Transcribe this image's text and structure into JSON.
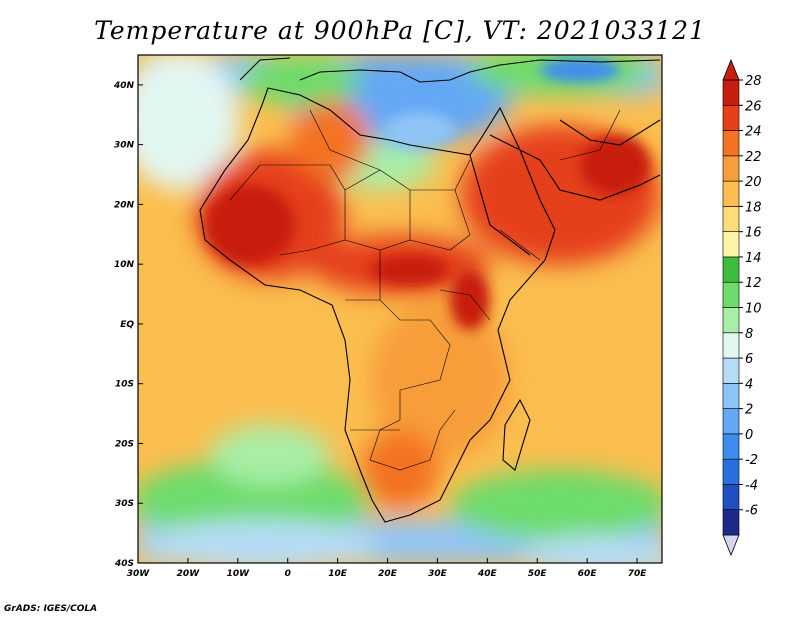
{
  "title": "Temperature at 900hPa [C], VT: 2021033121",
  "credit": "GrADS: IGES/COLA",
  "map": {
    "lon_range": [
      -30,
      75
    ],
    "lat_range": [
      -40,
      45
    ],
    "lon_ticks": [
      {
        "value": -30,
        "label": "30W"
      },
      {
        "value": -20,
        "label": "20W"
      },
      {
        "value": -10,
        "label": "10W"
      },
      {
        "value": 0,
        "label": "0"
      },
      {
        "value": 10,
        "label": "10E"
      },
      {
        "value": 20,
        "label": "20E"
      },
      {
        "value": 30,
        "label": "30E"
      },
      {
        "value": 40,
        "label": "40E"
      },
      {
        "value": 50,
        "label": "50E"
      },
      {
        "value": 60,
        "label": "60E"
      },
      {
        "value": 70,
        "label": "70E"
      }
    ],
    "lat_ticks": [
      {
        "value": 40,
        "label": "40N"
      },
      {
        "value": 30,
        "label": "30N"
      },
      {
        "value": 20,
        "label": "20N"
      },
      {
        "value": 10,
        "label": "10N"
      },
      {
        "value": 0,
        "label": "EQ"
      },
      {
        "value": -10,
        "label": "10S"
      },
      {
        "value": -20,
        "label": "20S"
      },
      {
        "value": -30,
        "label": "30S"
      },
      {
        "value": -40,
        "label": "40S"
      }
    ]
  },
  "colorbar": {
    "labels": [
      "-6",
      "-4",
      "-2",
      "0",
      "2",
      "4",
      "6",
      "8",
      "10",
      "12",
      "14",
      "16",
      "18",
      "20",
      "22",
      "24",
      "26",
      "28"
    ],
    "colors": [
      "#1e2a8a",
      "#1f4fc2",
      "#2a6fe0",
      "#3f8cf0",
      "#63a8f5",
      "#8fc4f7",
      "#b5dcf7",
      "#e2f6f2",
      "#a8eea6",
      "#6ddc6a",
      "#3cbd3c",
      "#fbf3a6",
      "#fddc79",
      "#fbbe4f",
      "#f79e3a",
      "#f47222",
      "#e5401a",
      "#c81e10"
    ]
  }
}
